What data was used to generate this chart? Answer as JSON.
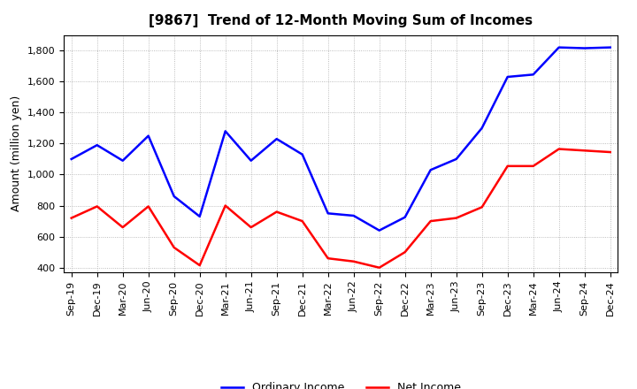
{
  "title": "[9867]  Trend of 12-Month Moving Sum of Incomes",
  "ylabel": "Amount (million yen)",
  "x_labels": [
    "Sep-19",
    "Dec-19",
    "Mar-20",
    "Jun-20",
    "Sep-20",
    "Dec-20",
    "Mar-21",
    "Jun-21",
    "Sep-21",
    "Dec-21",
    "Mar-22",
    "Jun-22",
    "Sep-22",
    "Dec-22",
    "Mar-23",
    "Jun-23",
    "Sep-23",
    "Dec-23",
    "Mar-24",
    "Jun-24",
    "Sep-24",
    "Dec-24"
  ],
  "ordinary_income": [
    1100,
    1190,
    1090,
    1250,
    860,
    730,
    1280,
    1090,
    1230,
    1130,
    750,
    735,
    640,
    725,
    1030,
    1100,
    1300,
    1630,
    1645,
    1820,
    1815,
    1820
  ],
  "net_income": [
    720,
    795,
    660,
    795,
    530,
    415,
    800,
    660,
    760,
    700,
    460,
    440,
    400,
    500,
    700,
    720,
    790,
    1055,
    1055,
    1165,
    1155,
    1145
  ],
  "ordinary_income_color": "#0000ff",
  "net_income_color": "#ff0000",
  "ylim": [
    370,
    1900
  ],
  "yticks": [
    400,
    600,
    800,
    1000,
    1200,
    1400,
    1600,
    1800
  ],
  "background_color": "#ffffff",
  "grid_color": "#aaaaaa",
  "legend_labels": [
    "Ordinary Income",
    "Net Income"
  ],
  "title_fontsize": 11,
  "axis_fontsize": 8,
  "ylabel_fontsize": 9
}
